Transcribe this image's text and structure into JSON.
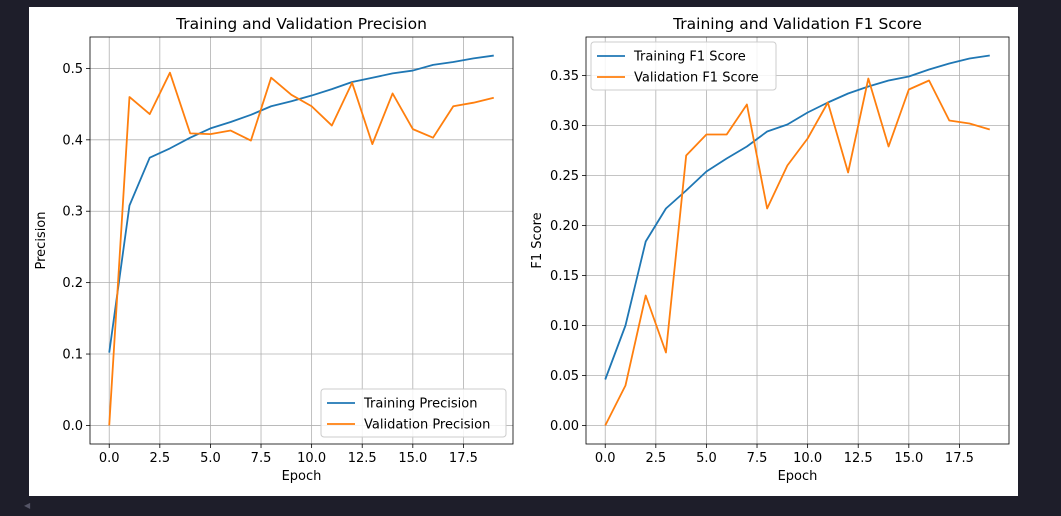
{
  "chart_data": [
    {
      "type": "line",
      "title": "Training and Validation Precision",
      "xlabel": "Epoch",
      "ylabel": "Precision",
      "x": [
        0,
        1,
        2,
        3,
        4,
        5,
        6,
        7,
        8,
        9,
        10,
        11,
        12,
        13,
        14,
        15,
        16,
        17,
        18,
        19
      ],
      "xlim": [
        -0.95,
        19.95
      ],
      "ylim": [
        -0.026,
        0.544
      ],
      "xticks": [
        0,
        2.5,
        5,
        7.5,
        10,
        12.5,
        15,
        17.5
      ],
      "xtick_labels": [
        "0.0",
        "2.5",
        "5.0",
        "7.5",
        "10.0",
        "12.5",
        "15.0",
        "17.5"
      ],
      "yticks": [
        0,
        0.1,
        0.2,
        0.3,
        0.4,
        0.5
      ],
      "ytick_labels": [
        "0.0",
        "0.1",
        "0.2",
        "0.3",
        "0.4",
        "0.5"
      ],
      "grid": true,
      "legend_loc": "lower-right",
      "series": [
        {
          "name": "Training Precision",
          "color": "#1f77b4",
          "values": [
            0.102,
            0.308,
            0.375,
            0.388,
            0.403,
            0.416,
            0.425,
            0.435,
            0.447,
            0.454,
            0.462,
            0.471,
            0.481,
            0.487,
            0.493,
            0.497,
            0.505,
            0.509,
            0.514,
            0.518
          ]
        },
        {
          "name": "Validation Precision",
          "color": "#ff7f0e",
          "values": [
            0.0,
            0.46,
            0.436,
            0.494,
            0.409,
            0.408,
            0.413,
            0.399,
            0.487,
            0.463,
            0.447,
            0.42,
            0.48,
            0.394,
            0.465,
            0.415,
            0.403,
            0.447,
            0.452,
            0.459
          ]
        }
      ]
    },
    {
      "type": "line",
      "title": "Training and Validation F1 Score",
      "xlabel": "Epoch",
      "ylabel": "F1 Score",
      "x": [
        0,
        1,
        2,
        3,
        4,
        5,
        6,
        7,
        8,
        9,
        10,
        11,
        12,
        13,
        14,
        15,
        16,
        17,
        18,
        19
      ],
      "xlim": [
        -0.95,
        19.95
      ],
      "ylim": [
        -0.0185,
        0.3885
      ],
      "xticks": [
        0,
        2.5,
        5,
        7.5,
        10,
        12.5,
        15,
        17.5
      ],
      "xtick_labels": [
        "0.0",
        "2.5",
        "5.0",
        "7.5",
        "10.0",
        "12.5",
        "15.0",
        "17.5"
      ],
      "yticks": [
        0,
        0.05,
        0.1,
        0.15,
        0.2,
        0.25,
        0.3,
        0.35
      ],
      "ytick_labels": [
        "0.00",
        "0.05",
        "0.10",
        "0.15",
        "0.20",
        "0.25",
        "0.30",
        "0.35"
      ],
      "grid": true,
      "legend_loc": "upper-left",
      "series": [
        {
          "name": "Training F1 Score",
          "color": "#1f77b4",
          "values": [
            0.046,
            0.1,
            0.184,
            0.217,
            0.235,
            0.254,
            0.267,
            0.279,
            0.294,
            0.301,
            0.313,
            0.323,
            0.332,
            0.339,
            0.345,
            0.349,
            0.356,
            0.362,
            0.367,
            0.37
          ]
        },
        {
          "name": "Validation F1 Score",
          "color": "#ff7f0e",
          "values": [
            0.0,
            0.04,
            0.13,
            0.073,
            0.27,
            0.291,
            0.291,
            0.321,
            0.217,
            0.26,
            0.287,
            0.323,
            0.253,
            0.347,
            0.279,
            0.336,
            0.345,
            0.305,
            0.302,
            0.296
          ]
        }
      ]
    }
  ]
}
